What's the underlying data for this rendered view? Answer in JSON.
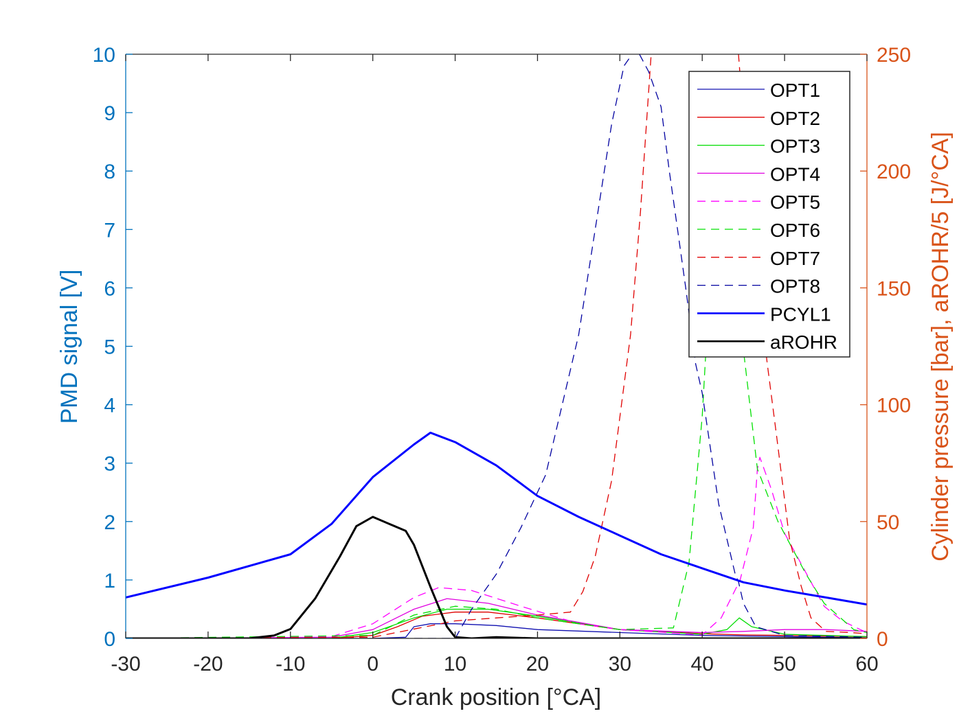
{
  "chart_data": {
    "type": "line",
    "xlabel": "Crank position [°CA]",
    "ylabel": "PMD signal [V]",
    "ylabel_right": "Cylinder pressure [bar], aROHR/5 [J/°CA]",
    "xlim": [
      -30,
      60
    ],
    "ylim": [
      0,
      10
    ],
    "ylim_right": [
      0,
      250
    ],
    "xticks": [
      "-30",
      "-20",
      "-10",
      "0",
      "10",
      "20",
      "30",
      "40",
      "50",
      "60"
    ],
    "yticks": [
      "0",
      "1",
      "2",
      "3",
      "4",
      "5",
      "6",
      "7",
      "8",
      "9",
      "10"
    ],
    "yticks_right": [
      "0",
      "50",
      "100",
      "150",
      "200",
      "250"
    ],
    "legend_position": "top-right",
    "grid": false,
    "colors": {
      "left_axis": "#0072BD",
      "right_axis": "#D95319",
      "box": "#000000"
    },
    "series": [
      {
        "name": "OPT1",
        "axis": "left",
        "color": "#1010b0",
        "style": "solid",
        "width": 1.3,
        "x": [
          -30,
          0,
          4,
          5,
          7,
          10,
          15,
          20,
          30,
          40,
          50,
          60
        ],
        "y": [
          0,
          0,
          0.02,
          0.2,
          0.25,
          0.25,
          0.22,
          0.15,
          0.1,
          0.05,
          0.03,
          0.01
        ]
      },
      {
        "name": "OPT2",
        "axis": "left",
        "color": "#e00000",
        "style": "solid",
        "width": 1.3,
        "x": [
          -30,
          -5,
          0,
          3,
          6,
          10,
          14,
          20,
          30,
          40,
          45,
          50,
          55,
          60
        ],
        "y": [
          0,
          0,
          0.05,
          0.2,
          0.38,
          0.45,
          0.45,
          0.35,
          0.15,
          0.08,
          0.06,
          0.05,
          0.04,
          0.03
        ]
      },
      {
        "name": "OPT3",
        "axis": "left",
        "color": "#00dd00",
        "style": "solid",
        "width": 1.3,
        "x": [
          -30,
          -5,
          0,
          5,
          9,
          14,
          20,
          30,
          40,
          43,
          44.5,
          46,
          50,
          60
        ],
        "y": [
          0,
          0,
          0.1,
          0.35,
          0.5,
          0.5,
          0.38,
          0.15,
          0.07,
          0.15,
          0.35,
          0.2,
          0.07,
          0.03
        ]
      },
      {
        "name": "OPT4",
        "axis": "left",
        "color": "#e000e0",
        "style": "solid",
        "width": 1.3,
        "x": [
          -30,
          -5,
          0,
          5,
          9,
          14,
          20,
          30,
          40,
          45,
          50,
          55,
          60
        ],
        "y": [
          0,
          0.02,
          0.15,
          0.5,
          0.68,
          0.6,
          0.4,
          0.15,
          0.1,
          0.12,
          0.15,
          0.15,
          0.12
        ]
      },
      {
        "name": "OPT5",
        "axis": "left",
        "color": "#ff00ff",
        "style": "dashed",
        "width": 1.3,
        "x": [
          -30,
          -5,
          0,
          5,
          8,
          12,
          18,
          25,
          30,
          40,
          42.3,
          44.6,
          46.2,
          46.7,
          47,
          48.4,
          50,
          52.3,
          54.8,
          57,
          59.2,
          60
        ],
        "y": [
          0,
          0.03,
          0.25,
          0.7,
          0.87,
          0.82,
          0.55,
          0.25,
          0.15,
          0.06,
          0.35,
          1.0,
          1.9,
          2.9,
          3.1,
          2.55,
          1.8,
          1.2,
          0.55,
          0.3,
          0.15,
          0.1
        ]
      },
      {
        "name": "OPT6",
        "axis": "left",
        "color": "#00e000",
        "style": "dashed",
        "width": 1.3,
        "x": [
          -30,
          0,
          5,
          10,
          15,
          20,
          30,
          36.5,
          38.4,
          40,
          40.4,
          41.5,
          43,
          44.5,
          45.2,
          46.7,
          49.2,
          52.6,
          54.8,
          58.4,
          60
        ],
        "y": [
          0,
          0.05,
          0.4,
          0.55,
          0.5,
          0.35,
          0.15,
          0.18,
          1.3,
          3.8,
          4.8,
          6.5,
          7,
          5.5,
          4.7,
          2.9,
          2.0,
          1.1,
          0.6,
          0.15,
          0.1
        ]
      },
      {
        "name": "OPT7",
        "axis": "left",
        "color": "#e00000",
        "style": "dashed",
        "width": 1.3,
        "x": [
          -30,
          0,
          10,
          15,
          20,
          24,
          25.5,
          27,
          29,
          31.3,
          32.5,
          33.8,
          34.5,
          44,
          44.4,
          46,
          47.9,
          49,
          50.6,
          52,
          53.2,
          55,
          58,
          60
        ],
        "y": [
          0,
          0.02,
          0.3,
          0.35,
          0.4,
          0.45,
          0.8,
          1.4,
          2.7,
          5.2,
          7.3,
          10,
          11,
          11,
          10,
          7,
          4.7,
          3.5,
          1.7,
          0.9,
          0.35,
          0.12,
          0.1,
          0.08
        ]
      },
      {
        "name": "OPT8",
        "axis": "left",
        "color": "#0000a0",
        "style": "dashed",
        "width": 1.3,
        "x": [
          -30,
          10,
          12,
          15,
          18,
          21,
          23,
          25,
          27,
          29,
          30.5,
          32,
          33.5,
          35,
          36,
          37,
          38,
          39.2,
          40,
          42,
          44,
          44.4,
          45,
          46.5,
          50,
          60
        ],
        "y": [
          0,
          0,
          0.5,
          1.1,
          1.9,
          2.8,
          4,
          5.2,
          7,
          8.8,
          9.8,
          10.1,
          9.7,
          9.1,
          8,
          7,
          6,
          4.7,
          4.2,
          2.3,
          1.1,
          0.97,
          0.6,
          0.2,
          0.05,
          0.02
        ]
      },
      {
        "name": "PCYL1",
        "axis": "right",
        "color": "#0000ff",
        "style": "solid",
        "width": 3,
        "x": [
          -30,
          -20,
          -10,
          -5,
          0,
          5,
          7,
          10,
          15,
          20,
          25,
          30,
          35,
          40,
          45,
          50,
          55,
          60
        ],
        "y": [
          17.5,
          26,
          36,
          49,
          69,
          83,
          88,
          84,
          74,
          61,
          52,
          44,
          36,
          30,
          24,
          20.5,
          17.5,
          14.5
        ]
      },
      {
        "name": "aROHR",
        "axis": "right",
        "color": "#000000",
        "style": "solid",
        "width": 3,
        "x": [
          -30,
          -15,
          -12,
          -10,
          -7,
          -4,
          -2,
          0,
          2,
          4,
          5,
          7,
          9,
          10,
          12,
          15,
          20,
          60
        ],
        "y": [
          0,
          0,
          1.2,
          4,
          17,
          35,
          48,
          52,
          49,
          46,
          40,
          22,
          5,
          0.5,
          0,
          0.5,
          0,
          0
        ]
      }
    ]
  }
}
